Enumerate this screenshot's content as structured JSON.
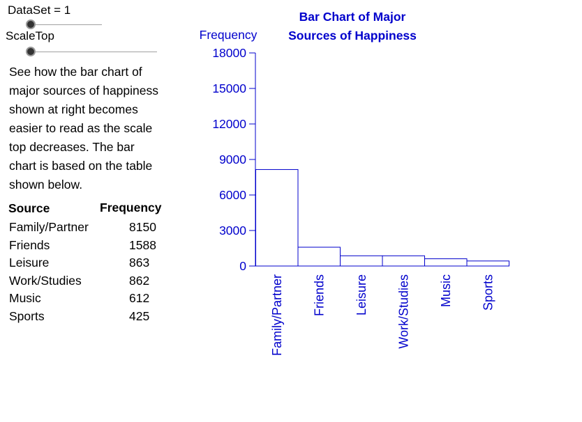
{
  "controls": {
    "dataset_slider": {
      "label": "DataSet = 1",
      "value": 1
    },
    "scaletop_slider": {
      "label": "ScaleTop",
      "value": 0
    }
  },
  "description": "See how the bar chart of\nmajor sources of happiness\nshown at right becomes\neasier to read as the scale\ntop decreases.  The bar\nchart is based on the table\nshown below.",
  "table": {
    "headers": [
      "Source",
      "Frequency"
    ],
    "rows": [
      [
        "Family/Partner",
        "8150"
      ],
      [
        "Friends",
        "1588"
      ],
      [
        "Leisure",
        "863"
      ],
      [
        "Work/Studies",
        "862"
      ],
      [
        "Music",
        "612"
      ],
      [
        "Sports",
        "425"
      ]
    ]
  },
  "colors": {
    "chart": "#0000cc",
    "text": "#000000"
  },
  "chart_data": {
    "type": "bar",
    "title_lines": [
      "Bar Chart of Major",
      "Sources of Happiness"
    ],
    "ylabel": "Frequency",
    "xlabel": "",
    "categories": [
      "Family/Partner",
      "Friends",
      "Leisure",
      "Work/Studies",
      "Music",
      "Sports"
    ],
    "values": [
      8150,
      1588,
      863,
      862,
      612,
      425
    ],
    "ylim": [
      0,
      18000
    ],
    "yticks": [
      0,
      3000,
      6000,
      9000,
      12000,
      15000,
      18000
    ],
    "grid": false
  }
}
